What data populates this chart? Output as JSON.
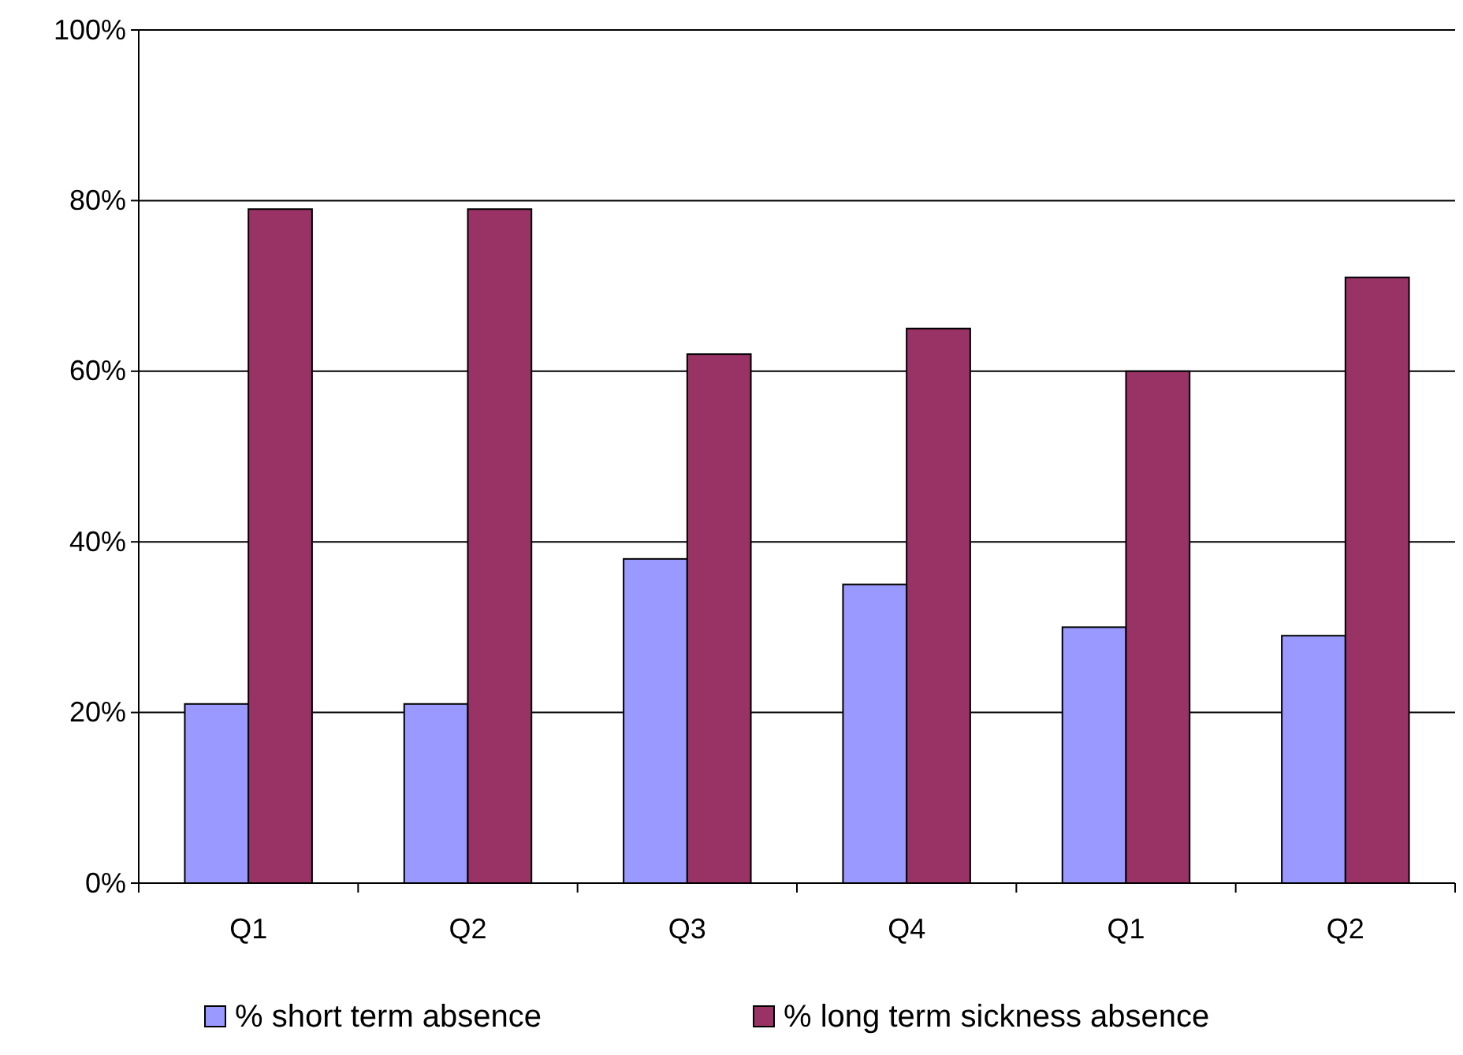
{
  "chart_data": {
    "type": "bar",
    "categories": [
      "Q1",
      "Q2",
      "Q3",
      "Q4",
      "Q1",
      "Q2"
    ],
    "series": [
      {
        "name": "% short term absence",
        "color": "#9999ff",
        "values": [
          21,
          21,
          38,
          35,
          30,
          29
        ]
      },
      {
        "name": "% long term sickness absence",
        "color": "#993366",
        "values": [
          79,
          79,
          62,
          65,
          60,
          71
        ]
      }
    ],
    "ylim": [
      0,
      100
    ],
    "yticks": [
      {
        "value": 0,
        "label": "0%"
      },
      {
        "value": 20,
        "label": "20%"
      },
      {
        "value": 40,
        "label": "40%"
      },
      {
        "value": 60,
        "label": "60%"
      },
      {
        "value": 80,
        "label": "80%"
      },
      {
        "value": 100,
        "label": "100%"
      }
    ],
    "grid": "y",
    "legend": "bottom"
  }
}
